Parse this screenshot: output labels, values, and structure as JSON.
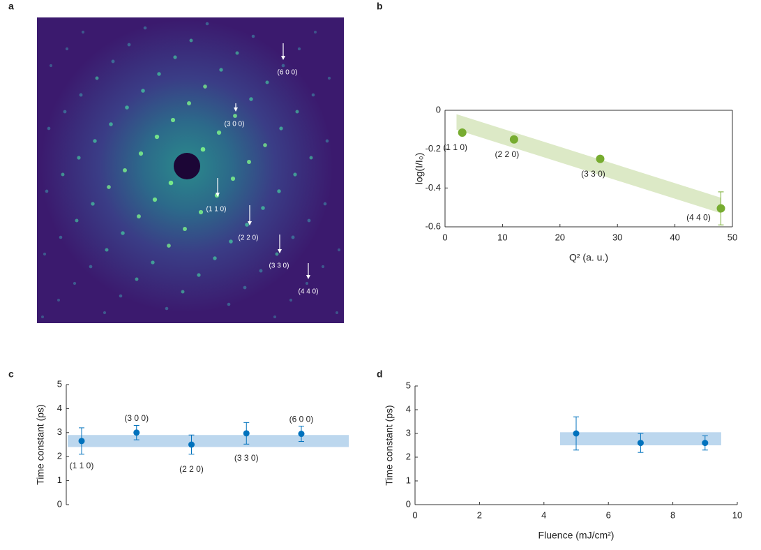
{
  "chart_data": [
    {
      "type": "image",
      "label": "a",
      "annotations": [
        "(6 0 0)",
        "(3 0 0)",
        "(1 1 0)",
        "(2 2 0)",
        "(3 3 0)",
        "(4 4 0)"
      ]
    },
    {
      "type": "scatter",
      "label": "b",
      "color": "#77ac30",
      "box": true,
      "x": [
        3,
        12,
        27,
        48
      ],
      "values": [
        -0.115,
        -0.15,
        -0.25,
        -0.505
      ],
      "errors": [
        null,
        null,
        null,
        0.085
      ],
      "point_labels": [
        "(1 1 0)",
        "(2 2 0)",
        "(3 3 0)",
        "(4 4 0)"
      ],
      "band": {
        "x": [
          2,
          48
        ],
        "upper": [
          -0.02,
          -0.45
        ],
        "lower": [
          -0.1,
          -0.53
        ],
        "color": "#dce9c6"
      },
      "xlim": [
        0,
        50
      ],
      "xticks": [
        0,
        10,
        20,
        30,
        40,
        50
      ],
      "ylim": [
        -0.6,
        0
      ],
      "yticks": [
        -0.6,
        -0.4,
        -0.2,
        0
      ],
      "xlabel": "Q² (a. u.)",
      "ylabel": "log(I/I₀)"
    },
    {
      "type": "scatter",
      "label": "c",
      "color": "#0072bd",
      "categories": [
        "(1 1 0)",
        "(3 0 0)",
        "(2 2 0)",
        "(3 3 0)",
        "(6 0 0)"
      ],
      "values": [
        2.65,
        3.0,
        2.5,
        2.97,
        2.95
      ],
      "errors": [
        0.55,
        0.3,
        0.4,
        0.45,
        0.32
      ],
      "label_position": [
        "below",
        "above",
        "below",
        "below",
        "above"
      ],
      "band": {
        "lower": 2.4,
        "upper": 2.9,
        "color": "#bcd7ee"
      },
      "ylim": [
        0,
        5
      ],
      "yticks": [
        0,
        1,
        2,
        3,
        4,
        5
      ],
      "ylabel": "Time constant (ps)"
    },
    {
      "type": "scatter",
      "label": "d",
      "color": "#0072bd",
      "x": [
        5,
        7,
        9
      ],
      "values": [
        3.0,
        2.6,
        2.6
      ],
      "errors": [
        0.7,
        0.4,
        0.3
      ],
      "band": {
        "x": [
          4.5,
          9.5
        ],
        "lower": 2.5,
        "upper": 3.05,
        "color": "#bcd7ee"
      },
      "xlim": [
        0,
        10
      ],
      "xticks": [
        0,
        2,
        4,
        6,
        8,
        10
      ],
      "ylim": [
        0,
        5
      ],
      "yticks": [
        0,
        1,
        2,
        3,
        4,
        5
      ],
      "xlabel": "Fluence (mJ/cm²)",
      "ylabel": "Time constant (ps)"
    }
  ]
}
